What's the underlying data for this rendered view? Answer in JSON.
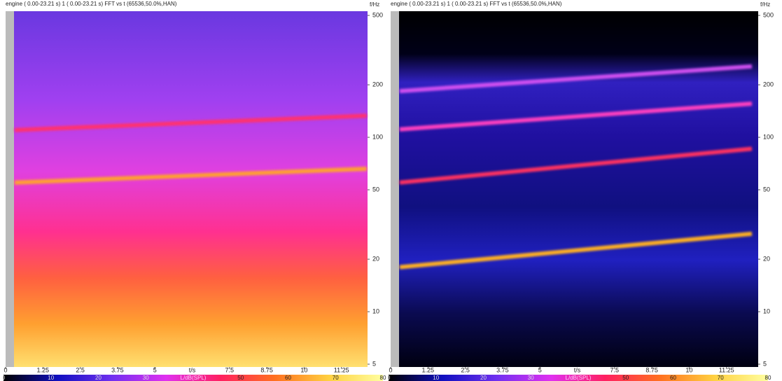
{
  "chart_data": [
    {
      "type": "spectrogram",
      "title": "engine ( 0.00-23.21 s) 1 ( 0.00-23.21 s) FFT vs t (65536,50.0%,HAN)",
      "xlabel": "t/s",
      "ylabel": "f/Hz",
      "xlim": [
        0,
        12.1
      ],
      "xticks": [
        0,
        1.25,
        2.5,
        3.75,
        5,
        7.5,
        8.75,
        10,
        11.25
      ],
      "ylim": [
        5,
        500
      ],
      "yticks": [
        5,
        10,
        20,
        50,
        100,
        200,
        500
      ],
      "log_y": true,
      "colorbar": {
        "label": "L/dB(SPL)",
        "lim": [
          0,
          80
        ],
        "ticks": [
          0,
          10,
          20,
          30,
          50,
          60,
          70,
          80
        ],
        "colors": [
          "#000000",
          "#1010c0",
          "#7030f0",
          "#e030f0",
          "#ff2060",
          "#ff7020",
          "#ffd040",
          "#ffffa0"
        ]
      },
      "traces": [
        {
          "color": "#ffa030",
          "x": [
            0.3,
            12.1
          ],
          "values": [
            55,
            66
          ]
        },
        {
          "color": "#ff3070",
          "x": [
            0.3,
            12.1
          ],
          "values": [
            110,
            133
          ]
        }
      ]
    },
    {
      "type": "spectrogram",
      "title": "engine ( 0.00-23.21 s) 1 ( 0.00-23.21 s) FFT vs t (65536,50.0%,HAN)",
      "xlabel": "t/s",
      "ylabel": "f/Hz",
      "xlim": [
        0,
        12.1
      ],
      "xticks": [
        0,
        1.25,
        2.5,
        3.75,
        5,
        7.5,
        8.75,
        10,
        11.25
      ],
      "ylim": [
        5,
        500
      ],
      "yticks": [
        5,
        10,
        20,
        50,
        100,
        200,
        500
      ],
      "log_y": true,
      "colorbar": {
        "label": "L/dB(SPL)",
        "lim": [
          0,
          80
        ],
        "ticks": [
          0,
          10,
          20,
          30,
          50,
          60,
          70,
          80
        ],
        "colors": [
          "#000000",
          "#1010c0",
          "#7030f0",
          "#e030f0",
          "#ff2060",
          "#ff7020",
          "#ffd040",
          "#ffffa0"
        ]
      },
      "traces": [
        {
          "color": "#ffb020",
          "x": [
            0.3,
            12.1
          ],
          "values": [
            18,
            28
          ]
        },
        {
          "color": "#ff3060",
          "x": [
            0.3,
            12.1
          ],
          "values": [
            55,
            86
          ]
        },
        {
          "color": "#ff40c0",
          "x": [
            0.3,
            12.1
          ],
          "values": [
            111,
            156
          ]
        },
        {
          "color": "#d050f0",
          "x": [
            0.3,
            12.1
          ],
          "values": [
            184,
            255
          ]
        }
      ]
    }
  ]
}
